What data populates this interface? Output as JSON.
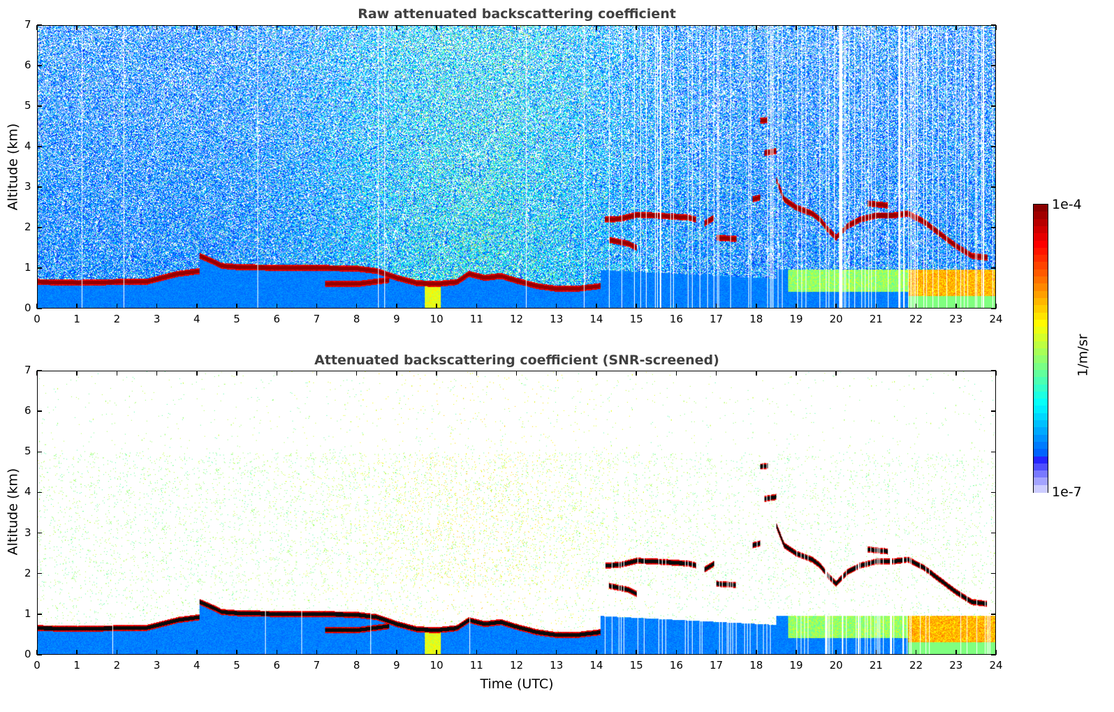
{
  "chart_data": [
    {
      "type": "heatmap",
      "title": "Raw attenuated backscattering coefficient",
      "xlabel": "",
      "ylabel": "Altitude (km)",
      "xlim": [
        0,
        24
      ],
      "ylim": [
        0,
        7
      ],
      "xticks": [
        "0",
        "1",
        "2",
        "3",
        "4",
        "5",
        "6",
        "7",
        "8",
        "9",
        "10",
        "11",
        "12",
        "13",
        "14",
        "15",
        "16",
        "17",
        "18",
        "19",
        "20",
        "21",
        "22",
        "23",
        "24"
      ],
      "yticks": [
        "0",
        "1",
        "2",
        "3",
        "4",
        "5",
        "6",
        "7"
      ],
      "screened": false,
      "features": [
        {
          "name": "boundary-layer top",
          "points": [
            [
              0,
              0.65
            ],
            [
              1,
              0.63
            ],
            [
              2,
              0.65
            ],
            [
              2.7,
              0.65
            ],
            [
              3.5,
              0.85
            ],
            [
              4.05,
              0.92
            ]
          ]
        },
        {
          "name": "elevated layer",
          "points": [
            [
              4.05,
              1.3
            ],
            [
              4.4,
              1.15
            ],
            [
              4.6,
              1.05
            ],
            [
              5,
              1.02
            ],
            [
              6,
              1.0
            ],
            [
              7,
              1.0
            ],
            [
              8,
              0.98
            ],
            [
              8.5,
              0.92
            ],
            [
              9,
              0.75
            ],
            [
              9.5,
              0.62
            ],
            [
              10,
              0.6
            ],
            [
              10.5,
              0.65
            ],
            [
              10.8,
              0.85
            ],
            [
              11.2,
              0.75
            ],
            [
              11.6,
              0.8
            ],
            [
              12,
              0.68
            ],
            [
              12.5,
              0.55
            ],
            [
              13,
              0.48
            ],
            [
              13.5,
              0.48
            ],
            [
              14.1,
              0.55
            ]
          ]
        },
        {
          "name": "lower residual layer",
          "points": [
            [
              7.2,
              0.6
            ],
            [
              8,
              0.6
            ],
            [
              8.8,
              0.7
            ]
          ]
        },
        {
          "name": "mid cloud",
          "points": [
            [
              14.2,
              2.2
            ],
            [
              14.6,
              2.22
            ],
            [
              15,
              2.32
            ],
            [
              15.5,
              2.3
            ],
            [
              16.3,
              2.25
            ],
            [
              16.5,
              2.2
            ]
          ]
        },
        {
          "name": "mid cloud lower",
          "points": [
            [
              14.3,
              1.7
            ],
            [
              14.8,
              1.6
            ],
            [
              15,
              1.5
            ]
          ]
        },
        {
          "name": "cloud 16.8",
          "points": [
            [
              16.7,
              2.1
            ],
            [
              16.95,
              2.25
            ]
          ]
        },
        {
          "name": "cloud 17.3",
          "points": [
            [
              17.0,
              1.75
            ],
            [
              17.5,
              1.72
            ]
          ]
        },
        {
          "name": "high cloud 18.2",
          "points": [
            [
              18.1,
              4.65
            ],
            [
              18.3,
              4.67
            ]
          ]
        },
        {
          "name": "high cloud 18.4",
          "points": [
            [
              18.2,
              3.85
            ],
            [
              18.5,
              3.9
            ]
          ]
        },
        {
          "name": "descending cloud",
          "points": [
            [
              18.5,
              3.2
            ],
            [
              18.7,
              2.7
            ],
            [
              19,
              2.5
            ],
            [
              19.4,
              2.35
            ],
            [
              19.6,
              2.2
            ],
            [
              19.8,
              1.95
            ],
            [
              20,
              1.75
            ],
            [
              20.3,
              2.05
            ],
            [
              20.6,
              2.2
            ],
            [
              21,
              2.3
            ],
            [
              21.4,
              2.3
            ],
            [
              21.8,
              2.35
            ],
            [
              22.2,
              2.15
            ],
            [
              22.6,
              1.85
            ],
            [
              23,
              1.55
            ],
            [
              23.4,
              1.3
            ],
            [
              23.8,
              1.25
            ]
          ]
        },
        {
          "name": "cloud 21",
          "points": [
            [
              20.8,
              2.6
            ],
            [
              21.3,
              2.55
            ]
          ]
        },
        {
          "name": "cloud 18",
          "points": [
            [
              17.9,
              2.7
            ],
            [
              18.1,
              2.75
            ]
          ]
        }
      ]
    },
    {
      "type": "heatmap",
      "title": "Attenuated backscattering coefficient (SNR-screened)",
      "xlabel": "Time (UTC)",
      "ylabel": "Altitude (km)",
      "xlim": [
        0,
        24
      ],
      "ylim": [
        0,
        7
      ],
      "xticks": [
        "0",
        "1",
        "2",
        "3",
        "4",
        "5",
        "6",
        "7",
        "8",
        "9",
        "10",
        "11",
        "12",
        "13",
        "14",
        "15",
        "16",
        "17",
        "18",
        "19",
        "20",
        "21",
        "22",
        "23",
        "24"
      ],
      "yticks": [
        "0",
        "1",
        "2",
        "3",
        "4",
        "5",
        "6",
        "7"
      ],
      "screened": true
    }
  ],
  "colorbar": {
    "min_label": "1e-7",
    "max_label": "1e-4",
    "unit": "1/m/sr",
    "colormap": "jet"
  }
}
